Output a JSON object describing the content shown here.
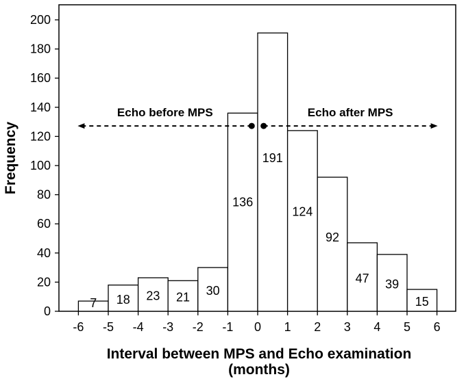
{
  "chart_data": {
    "type": "bar",
    "xlabel_line1": "Interval between MPS and Echo examination",
    "xlabel_line2": "(months)",
    "ylabel": "Frequency",
    "ylim": [
      0,
      200
    ],
    "y_ticks": [
      0,
      20,
      40,
      60,
      80,
      100,
      120,
      140,
      160,
      180,
      200
    ],
    "xlim": [
      -6,
      6
    ],
    "x_ticks": [
      -6,
      -5,
      -4,
      -3,
      -2,
      -1,
      0,
      1,
      2,
      3,
      4,
      5,
      6
    ],
    "grid": false,
    "bins": [
      {
        "from": -6,
        "to": -5,
        "value": 7
      },
      {
        "from": -5,
        "to": -4,
        "value": 18
      },
      {
        "from": -4,
        "to": -3,
        "value": 23
      },
      {
        "from": -3,
        "to": -2,
        "value": 21
      },
      {
        "from": -2,
        "to": -1,
        "value": 30
      },
      {
        "from": -1,
        "to": 0,
        "value": 136
      },
      {
        "from": 0,
        "to": 1,
        "value": 191
      },
      {
        "from": 1,
        "to": 2,
        "value": 124
      },
      {
        "from": 2,
        "to": 3,
        "value": 92
      },
      {
        "from": 3,
        "to": 4,
        "value": 47
      },
      {
        "from": 4,
        "to": 5,
        "value": 39
      },
      {
        "from": 5,
        "to": 6,
        "value": 15
      }
    ],
    "annotations": {
      "before": {
        "text": "Echo before MPS",
        "arrow_from": -0.2,
        "arrow_to": -6.0,
        "y": 130
      },
      "after": {
        "text": "Echo after MPS",
        "arrow_from": 0.2,
        "arrow_to": 6.0,
        "y": 130
      }
    }
  }
}
